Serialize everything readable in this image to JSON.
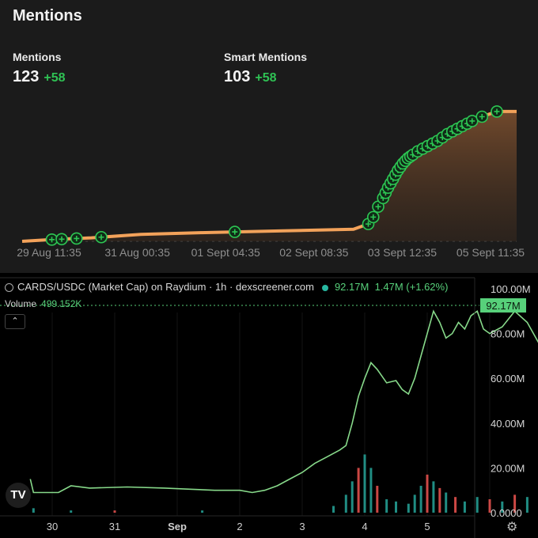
{
  "mentions_panel": {
    "title": "Mentions",
    "mentions": {
      "label": "Mentions",
      "value": "123",
      "delta": "+58"
    },
    "smart_mentions": {
      "label": "Smart Mentions",
      "value": "103",
      "delta": "+58"
    }
  },
  "market_panel": {
    "header_title": "CARDS/USDC (Market Cap) on Raydium · 1h · dexscreener.com",
    "header_value": "92.17M",
    "header_change": "1.47M (+1.62%)",
    "volume_label": "Volume",
    "volume_value": "499.152K",
    "price_tag": "92.17M",
    "logo_text": "TV"
  },
  "colors": {
    "mentions_line": "#f3a25a",
    "price_line": "#87d98a",
    "marker": "#2dc653",
    "vol_up": "#26a69a",
    "vol_down": "#ef5350"
  },
  "chart_data": [
    {
      "type": "area",
      "title": "Mentions",
      "x_ticks": [
        "29 Aug 11:35",
        "31 Aug 00:35",
        "01 Sept 04:35",
        "02 Sept 08:35",
        "03 Sept 12:35",
        "05 Sept 11:35"
      ],
      "x_index_range": [
        0,
        100
      ],
      "series": [
        {
          "values": [
            [
              0,
              0
            ],
            [
              6,
              1
            ],
            [
              14,
              2
            ],
            [
              24,
              4
            ],
            [
              36,
              5
            ],
            [
              52,
              6
            ],
            [
              67,
              7
            ],
            [
              70,
              10
            ],
            [
              71,
              14
            ],
            [
              72,
              20
            ],
            [
              73,
              25
            ],
            [
              74,
              31
            ],
            [
              75,
              36
            ],
            [
              76,
              41
            ],
            [
              77,
              45
            ],
            [
              78,
              48
            ],
            [
              80,
              52
            ],
            [
              82,
              55
            ],
            [
              84,
              58
            ],
            [
              86,
              62
            ],
            [
              88,
              65
            ],
            [
              90,
              68
            ],
            [
              92,
              71
            ],
            [
              94,
              73
            ],
            [
              96,
              75
            ],
            [
              100,
              75
            ]
          ]
        }
      ],
      "markers_at": [
        6,
        8,
        11,
        16,
        43,
        70,
        71,
        72,
        73,
        73.5,
        74,
        74.5,
        75,
        75.5,
        76,
        76.5,
        77,
        77.5,
        78,
        78.5,
        79,
        80,
        81,
        82,
        83,
        84,
        85,
        86,
        87,
        88,
        89,
        90,
        91,
        93,
        96
      ],
      "ylim": [
        0,
        80
      ]
    },
    {
      "type": "line",
      "title": "CARDS/USDC (Market Cap) on Raydium · 1h · dexscreener.com",
      "x_ticks": [
        "30",
        "31",
        "Sep",
        "2",
        "3",
        "4",
        "5"
      ],
      "y_ticks": [
        "100.00M",
        "80.00M",
        "60.00M",
        "40.00M",
        "20.00M",
        "0.0000"
      ],
      "ylim": [
        0,
        100
      ],
      "y_unit": "M",
      "series": [
        {
          "values": [
            [
              29.65,
              15
            ],
            [
              29.7,
              9
            ],
            [
              29.9,
              9
            ],
            [
              30.1,
              9
            ],
            [
              30.3,
              12
            ],
            [
              30.6,
              11
            ],
            [
              31.2,
              11.5
            ],
            [
              31.8,
              11
            ],
            [
              32.2,
              10.5
            ],
            [
              32.6,
              10
            ],
            [
              33.0,
              10
            ],
            [
              33.2,
              9
            ],
            [
              33.4,
              10
            ],
            [
              33.6,
              12
            ],
            [
              33.8,
              15
            ],
            [
              34.0,
              18
            ],
            [
              34.2,
              22
            ],
            [
              34.4,
              25
            ],
            [
              34.6,
              28
            ],
            [
              34.7,
              30
            ],
            [
              34.8,
              40
            ],
            [
              34.9,
              52
            ],
            [
              35.0,
              60
            ],
            [
              35.1,
              67
            ],
            [
              35.2,
              64
            ],
            [
              35.35,
              58
            ],
            [
              35.5,
              59
            ],
            [
              35.6,
              55
            ],
            [
              35.7,
              53
            ],
            [
              35.8,
              60
            ],
            [
              35.9,
              70
            ],
            [
              36.0,
              80
            ],
            [
              36.1,
              90
            ],
            [
              36.2,
              85
            ],
            [
              36.3,
              78
            ],
            [
              36.4,
              80
            ],
            [
              36.5,
              85
            ],
            [
              36.6,
              82
            ],
            [
              36.7,
              88
            ],
            [
              36.8,
              90
            ],
            [
              36.9,
              82
            ],
            [
              37.0,
              80
            ],
            [
              37.2,
              83
            ],
            [
              37.4,
              90
            ],
            [
              37.6,
              85
            ],
            [
              37.8,
              75
            ],
            [
              38.0,
              67
            ],
            [
              38.2,
              66
            ],
            [
              38.4,
              71
            ],
            [
              38.6,
              72
            ],
            [
              38.8,
              76
            ],
            [
              39.0,
              77
            ],
            [
              39.2,
              80
            ],
            [
              39.4,
              84
            ],
            [
              39.5,
              86
            ],
            [
              39.6,
              90
            ],
            [
              39.7,
              92
            ]
          ]
        }
      ],
      "volume": [
        {
          "x": 29.7,
          "v": 2,
          "up": true
        },
        {
          "x": 30.3,
          "v": 1,
          "up": true
        },
        {
          "x": 31.0,
          "v": 1,
          "up": false
        },
        {
          "x": 32.4,
          "v": 1,
          "up": true
        },
        {
          "x": 34.5,
          "v": 3,
          "up": true
        },
        {
          "x": 34.7,
          "v": 8,
          "up": true
        },
        {
          "x": 34.8,
          "v": 14,
          "up": true
        },
        {
          "x": 34.9,
          "v": 20,
          "up": false
        },
        {
          "x": 35.0,
          "v": 26,
          "up": true
        },
        {
          "x": 35.1,
          "v": 20,
          "up": true
        },
        {
          "x": 35.2,
          "v": 12,
          "up": false
        },
        {
          "x": 35.35,
          "v": 6,
          "up": true
        },
        {
          "x": 35.5,
          "v": 5,
          "up": true
        },
        {
          "x": 35.7,
          "v": 4,
          "up": true
        },
        {
          "x": 35.8,
          "v": 8,
          "up": true
        },
        {
          "x": 35.9,
          "v": 12,
          "up": true
        },
        {
          "x": 36.0,
          "v": 17,
          "up": false
        },
        {
          "x": 36.1,
          "v": 14,
          "up": true
        },
        {
          "x": 36.2,
          "v": 11,
          "up": false
        },
        {
          "x": 36.3,
          "v": 9,
          "up": true
        },
        {
          "x": 36.45,
          "v": 7,
          "up": false
        },
        {
          "x": 36.6,
          "v": 5,
          "up": true
        },
        {
          "x": 36.8,
          "v": 7,
          "up": true
        },
        {
          "x": 37.0,
          "v": 6,
          "up": false
        },
        {
          "x": 37.2,
          "v": 5,
          "up": true
        },
        {
          "x": 37.4,
          "v": 8,
          "up": false
        },
        {
          "x": 37.6,
          "v": 7,
          "up": true
        },
        {
          "x": 37.8,
          "v": 10,
          "up": false
        },
        {
          "x": 38.0,
          "v": 6,
          "up": true
        },
        {
          "x": 38.2,
          "v": 4,
          "up": false
        },
        {
          "x": 38.5,
          "v": 3,
          "up": true
        },
        {
          "x": 38.8,
          "v": 2,
          "up": false
        },
        {
          "x": 39.1,
          "v": 2,
          "up": true
        },
        {
          "x": 39.4,
          "v": 3,
          "up": false
        },
        {
          "x": 39.6,
          "v": 2,
          "up": true
        }
      ]
    }
  ]
}
